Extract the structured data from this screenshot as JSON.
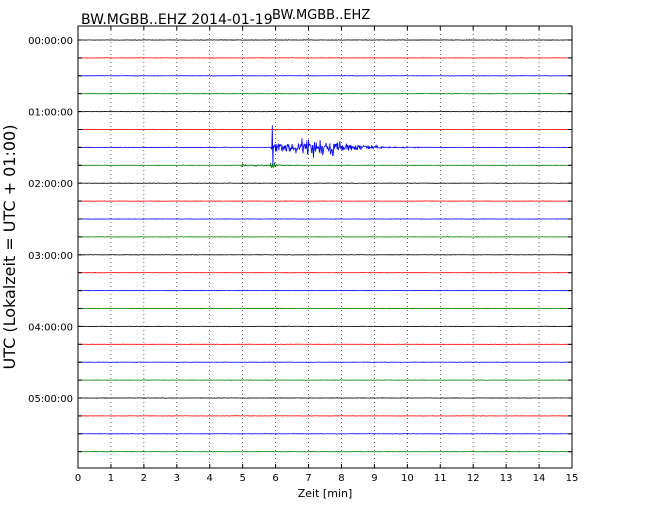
{
  "header": {
    "title_left": "BW.MGBB..EHZ 2014-01-19",
    "title_center": "BW.MGBB..EHZ"
  },
  "chart_data": {
    "type": "line",
    "title": "BW.MGBB..EHZ",
    "xlabel": "Zeit  [min]",
    "ylabel": "UTC (Lokalzeit = UTC + 01:00)",
    "xlim": [
      0,
      15
    ],
    "x_ticks": [
      "0",
      "1",
      "2",
      "3",
      "4",
      "5",
      "6",
      "7",
      "8",
      "9",
      "10",
      "11",
      "12",
      "13",
      "14",
      "15"
    ],
    "y_tick_labels": [
      "00:00:00",
      "01:00:00",
      "02:00:00",
      "03:00:00",
      "04:00:00",
      "05:00:00"
    ],
    "grid": true,
    "trace_colors": [
      "#000000",
      "#ff0000",
      "#0000ff",
      "#008000"
    ],
    "traces_count": 24,
    "rows_per_hour": 4,
    "minutes_per_row": 15,
    "event": {
      "row": 6,
      "onset_min": 5.88,
      "peak_spike_min": 5.9,
      "coda_peak_min": 7.5,
      "end_min": 10.7
    },
    "precursor": {
      "row": 7,
      "start_min": 4.95,
      "end_min": 7.0
    }
  }
}
